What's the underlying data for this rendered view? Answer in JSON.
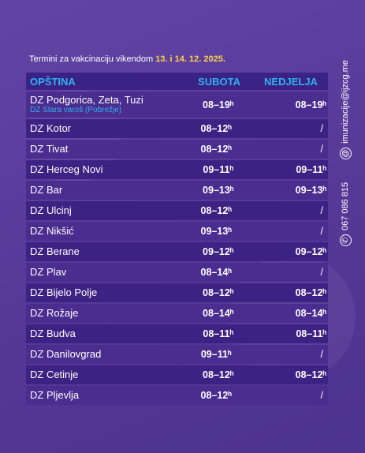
{
  "title_prefix": "Termini za vakcinaciju vikendom",
  "title_date": "13. i 14. 12. 2025.",
  "headers": {
    "opstina": "OPŠTINA",
    "subota": "SUBOTA",
    "nedjelja": "NEDJELJA"
  },
  "rows": [
    {
      "name": "DZ Podgorica, Zeta, Tuzi",
      "sub": "DZ Stara varoš (Pobrežje)",
      "subota": "08–19ʰ",
      "nedjelja": "08–19ʰ"
    },
    {
      "name": "DZ Kotor",
      "subota": "08–12ʰ",
      "nedjelja": "/"
    },
    {
      "name": "DZ Tivat",
      "subota": "08–12ʰ",
      "nedjelja": "/"
    },
    {
      "name": "DZ Herceg Novi",
      "subota": "09–11ʰ",
      "nedjelja": "09–11ʰ"
    },
    {
      "name": "DZ Bar",
      "subota": "09–13ʰ",
      "nedjelja": "09–13ʰ"
    },
    {
      "name": "DZ Ulcinj",
      "subota": "08–12ʰ",
      "nedjelja": "/"
    },
    {
      "name": "DZ Nikšić",
      "subota": "09–13ʰ",
      "nedjelja": "/"
    },
    {
      "name": "DZ Berane",
      "subota": "09–12ʰ",
      "nedjelja": "09–12ʰ"
    },
    {
      "name": "DZ Plav",
      "subota": "08–14ʰ",
      "nedjelja": "/"
    },
    {
      "name": "DZ Bijelo Polje",
      "subota": "08–12ʰ",
      "nedjelja": "08–12ʰ"
    },
    {
      "name": "DZ Rožaje",
      "subota": "08–14ʰ",
      "nedjelja": "08–14ʰ"
    },
    {
      "name": "DZ Budva",
      "subota": "08–11ʰ",
      "nedjelja": "08–11ʰ"
    },
    {
      "name": "DZ Danilovgrad",
      "subota": "09–11ʰ",
      "nedjelja": "/"
    },
    {
      "name": "DZ Cetinje",
      "subota": "08–12ʰ",
      "nedjelja": "08–12ʰ"
    },
    {
      "name": "DZ Pljevlja",
      "subota": "08–12ʰ",
      "nedjelja": "/"
    }
  ],
  "contact": {
    "phone": "067 086 815",
    "email": "imunizacije@ijzcg.me",
    "phone_icon": "phone-icon",
    "email_icon": "at-icon"
  }
}
